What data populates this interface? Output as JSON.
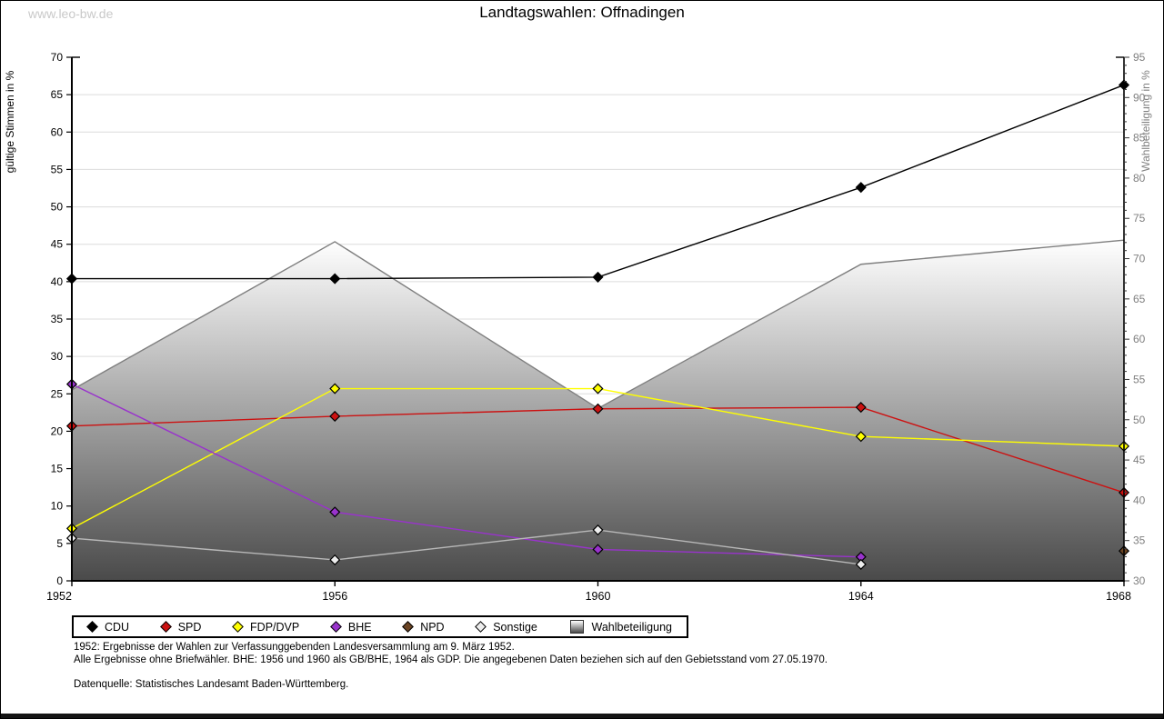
{
  "page": {
    "watermark": "www.leo-bw.de",
    "title": "Landtagswahlen: Offnadingen"
  },
  "chart_data": {
    "type": "line",
    "title": "Landtagswahlen: Offnadingen",
    "x": [
      1952,
      1956,
      1960,
      1964,
      1968
    ],
    "left_axis": {
      "label": "gültige Stimmen in %",
      "min": 0,
      "max": 70,
      "tick_step": 5
    },
    "right_axis": {
      "label": "Wahlbeteiligung in %",
      "min": 30,
      "max": 95,
      "tick_step": 5
    },
    "grid": true,
    "legend_position": "bottom",
    "area_style": {
      "gradient_top": "#ffffff",
      "gradient_bottom": "#4a4a4a",
      "stroke": "#7f7f7f"
    },
    "series": [
      {
        "name": "CDU",
        "axis": "left",
        "kind": "line",
        "color": "#000000",
        "marker_fill": "#000000",
        "values": [
          40.4,
          40.4,
          40.6,
          52.6,
          66.3
        ]
      },
      {
        "name": "SPD",
        "axis": "left",
        "kind": "line",
        "color": "#cc1111",
        "marker_fill": "#cc1111",
        "values": [
          20.7,
          22.0,
          23.0,
          23.2,
          11.8
        ]
      },
      {
        "name": "FDP/DVP",
        "axis": "left",
        "kind": "line",
        "color": "#ffff00",
        "marker_fill": "#ffff00",
        "values": [
          7.0,
          25.7,
          25.7,
          19.3,
          18.0
        ]
      },
      {
        "name": "BHE",
        "axis": "left",
        "kind": "line",
        "color": "#9933cc",
        "marker_fill": "#9933cc",
        "values": [
          26.3,
          9.2,
          4.2,
          3.2,
          null
        ]
      },
      {
        "name": "NPD",
        "axis": "left",
        "kind": "line",
        "color": "#6b4423",
        "marker_fill": "#6b4423",
        "values": [
          null,
          null,
          null,
          null,
          4.0
        ]
      },
      {
        "name": "Sonstige",
        "axis": "left",
        "kind": "line",
        "color": "#b8b8b8",
        "marker_fill": "#ededed",
        "values": [
          5.7,
          2.8,
          6.8,
          2.2,
          null
        ]
      },
      {
        "name": "Wahlbeteiligung",
        "axis": "right",
        "kind": "area",
        "values": [
          53.7,
          72.1,
          51.4,
          69.3,
          72.3
        ]
      }
    ]
  },
  "legend": {
    "items": [
      {
        "label": "CDU",
        "swatch": "diamond",
        "color": "#000000"
      },
      {
        "label": "SPD",
        "swatch": "diamond",
        "color": "#cc1111"
      },
      {
        "label": "FDP/DVP",
        "swatch": "diamond",
        "color": "#ffff00"
      },
      {
        "label": "BHE",
        "swatch": "diamond",
        "color": "#9933cc"
      },
      {
        "label": "NPD",
        "swatch": "diamond",
        "color": "#6b4423"
      },
      {
        "label": "Sonstige",
        "swatch": "diamond",
        "color": "#ededed"
      },
      {
        "label": "Wahlbeteiligung",
        "swatch": "gradient-square",
        "color": "#555555"
      }
    ]
  },
  "footnotes": {
    "line1": "1952: Ergebnisse der Wahlen zur Verfassunggebenden Landesversammlung am 9. März 1952.",
    "line2": "Alle Ergebnisse ohne Briefwähler. BHE: 1956 und 1960 als GB/BHE, 1964 als GDP. Die angegebenen Daten beziehen sich auf den Gebietsstand vom 27.05.1970.",
    "source": "Datenquelle: Statistisches Landesamt Baden-Württemberg."
  }
}
